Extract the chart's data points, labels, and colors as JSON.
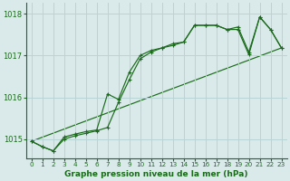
{
  "bg_color": "#daeaea",
  "grid_color": "#b8d4d4",
  "line_color": "#1a6b1a",
  "title": "Graphe pression niveau de la mer (hPa)",
  "xlim": [
    -0.5,
    23.5
  ],
  "ylim": [
    1014.55,
    1018.25
  ],
  "yticks": [
    1015,
    1016,
    1017,
    1018
  ],
  "xticks": [
    0,
    1,
    2,
    3,
    4,
    5,
    6,
    7,
    8,
    9,
    10,
    11,
    12,
    13,
    14,
    15,
    16,
    17,
    18,
    19,
    20,
    21,
    22,
    23
  ],
  "series_jagged": {
    "x": [
      0,
      1,
      2,
      3,
      4,
      5,
      6,
      7,
      8,
      9,
      10,
      11,
      12,
      13,
      14,
      15,
      16,
      17,
      18,
      19,
      20,
      21,
      22,
      23
    ],
    "y": [
      1014.95,
      1014.82,
      1014.72,
      1015.05,
      1015.12,
      1015.18,
      1015.22,
      1016.08,
      1015.95,
      1016.6,
      1017.0,
      1017.12,
      1017.18,
      1017.28,
      1017.32,
      1017.72,
      1017.72,
      1017.72,
      1017.62,
      1017.68,
      1017.08,
      1017.92,
      1017.62,
      1017.18
    ]
  },
  "series_smooth": {
    "x": [
      0,
      1,
      2,
      3,
      4,
      5,
      6,
      7,
      8,
      9,
      10,
      11,
      12,
      13,
      14,
      15,
      16,
      17,
      18,
      19,
      20,
      21,
      22,
      23
    ],
    "y": [
      1014.95,
      1014.82,
      1014.72,
      1015.0,
      1015.08,
      1015.14,
      1015.2,
      1015.28,
      1015.88,
      1016.42,
      1016.92,
      1017.08,
      1017.18,
      1017.24,
      1017.32,
      1017.72,
      1017.72,
      1017.72,
      1017.62,
      1017.62,
      1017.02,
      1017.92,
      1017.62,
      1017.18
    ]
  },
  "series_line": {
    "x": [
      0,
      23
    ],
    "y": [
      1014.95,
      1017.18
    ]
  }
}
